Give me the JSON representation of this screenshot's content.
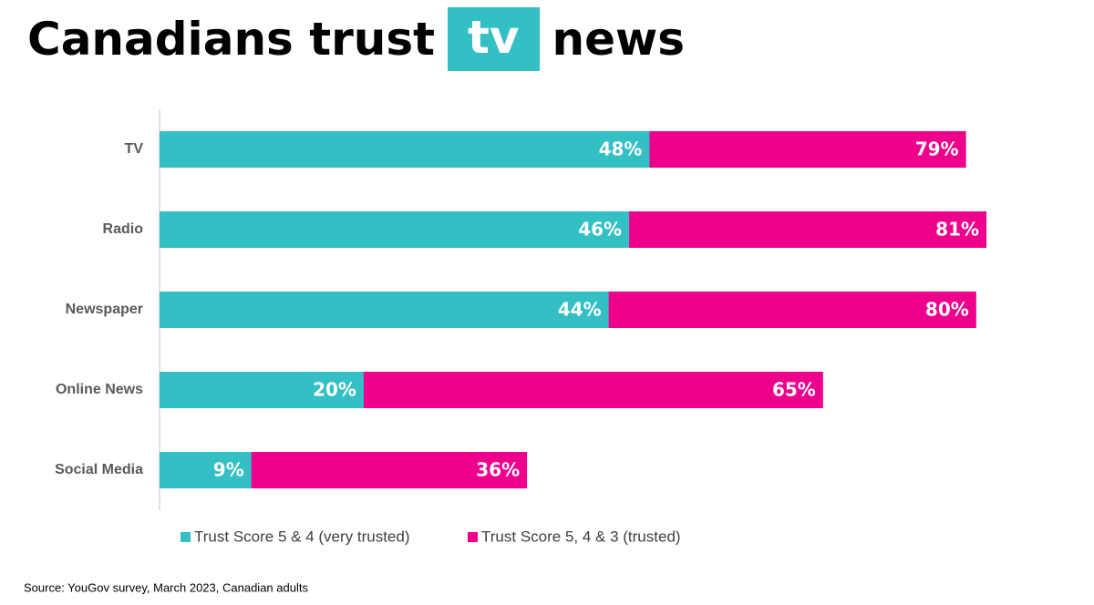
{
  "chart_data": {
    "type": "bar",
    "orientation": "horizontal",
    "overlap": true,
    "title": "Canadians trust",
    "title_highlight": "tv",
    "title_end": "news",
    "categories": [
      "TV",
      "Radio",
      "Newspaper",
      "Online News",
      "Social Media"
    ],
    "series": [
      {
        "name": "Trust Score 5, 4 & 3 (trusted)",
        "color": "#ec008c",
        "values": [
          79,
          81,
          80,
          65,
          36
        ],
        "value_labels": [
          "79%",
          "81%",
          "80%",
          "65%",
          "36%"
        ]
      },
      {
        "name": "Trust Score 5 & 4 (very trusted)",
        "color": "#33bfc4",
        "values": [
          48,
          46,
          44,
          20,
          9
        ],
        "value_labels": [
          "48%",
          "46%",
          "44%",
          "20%",
          "9%"
        ]
      }
    ],
    "legend_order": [
      1,
      0
    ],
    "source": "Source: YouGov survey, March 2023, Canadian adults"
  }
}
